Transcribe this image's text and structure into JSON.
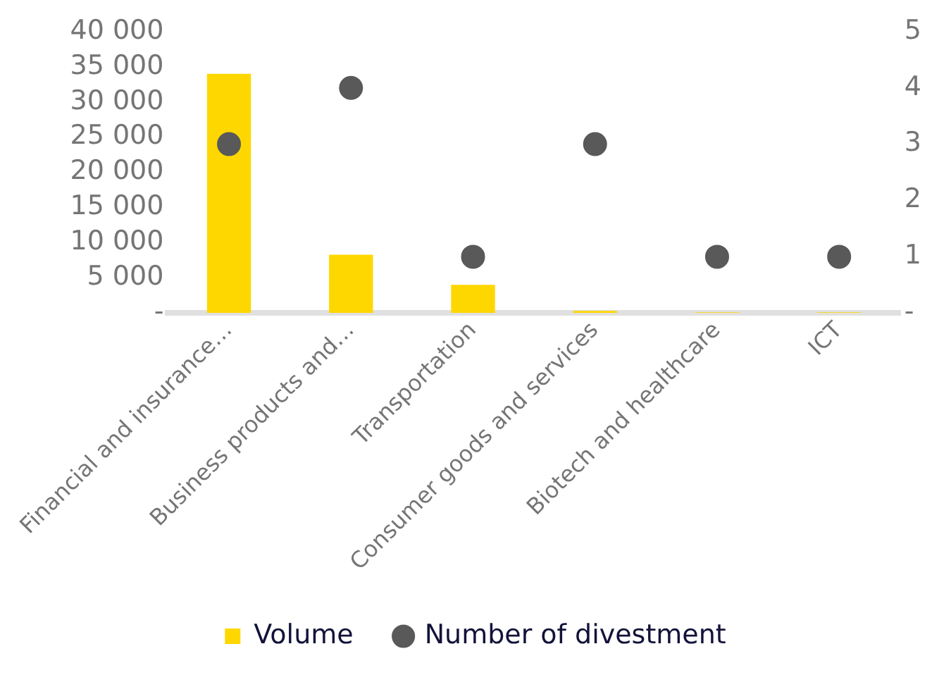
{
  "chart_data": {
    "type": "bar",
    "categories": [
      "Financial and insurance…",
      "Business products and…",
      "Transportation",
      "Consumer goods and services",
      "Biotech and healthcare",
      "ICT"
    ],
    "series": [
      {
        "name": "Volume",
        "color": "#ffd700",
        "values": [
          34000,
          8300,
          4000,
          300,
          100,
          100
        ]
      },
      {
        "name": "Number of divestment",
        "type": "scatter",
        "axis": "y2",
        "color": "#595959",
        "values": [
          3,
          4,
          1,
          3,
          1,
          1
        ]
      }
    ],
    "ylim": [
      0,
      40000
    ],
    "yticks": [
      {
        "value": 0,
        "label": "-"
      },
      {
        "value": 5000,
        "label": "5 000"
      },
      {
        "value": 10000,
        "label": "10 000"
      },
      {
        "value": 15000,
        "label": "15 000"
      },
      {
        "value": 20000,
        "label": "20 000"
      },
      {
        "value": 25000,
        "label": "25 000"
      },
      {
        "value": 30000,
        "label": "30 000"
      },
      {
        "value": 35000,
        "label": "35 000"
      },
      {
        "value": 40000,
        "label": "40 000"
      }
    ],
    "y2lim": [
      0,
      5
    ],
    "y2ticks": [
      {
        "value": 0,
        "label": "-"
      },
      1,
      2,
      3,
      4,
      5
    ],
    "marker": "circle",
    "grid": false,
    "legend": "bottom"
  }
}
